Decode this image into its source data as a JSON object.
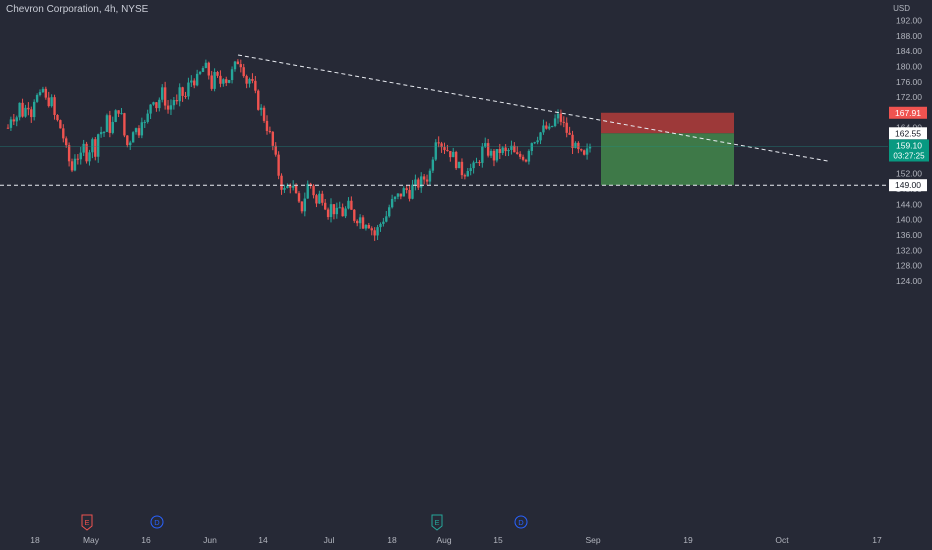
{
  "header": {
    "symbol_title": "Chevron Corporation, 4h, NYSE",
    "currency": "USD"
  },
  "price_axis": {
    "labels": [
      "192.00",
      "188.00",
      "184.00",
      "180.00",
      "176.00",
      "172.00",
      "168.00",
      "164.00",
      "160.00",
      "156.00",
      "152.00",
      "148.00",
      "144.00",
      "140.00",
      "136.00",
      "132.00",
      "128.00",
      "124.00"
    ]
  },
  "time_axis": {
    "labels": [
      "18",
      "May",
      "16",
      "Jun",
      "14",
      "Jul",
      "18",
      "Aug",
      "15",
      "Sep",
      "19",
      "Oct",
      "17"
    ]
  },
  "events": [
    {
      "label": "E",
      "kind": "earnings",
      "color": "#ef5350"
    },
    {
      "label": "D",
      "kind": "dividend",
      "color": "#2962ff"
    },
    {
      "label": "E",
      "kind": "earnings",
      "color": "#26a69a"
    },
    {
      "label": "D",
      "kind": "dividend",
      "color": "#2962ff"
    }
  ],
  "badges": {
    "stop": {
      "text": "167.91",
      "color": "#ef5350"
    },
    "entry": {
      "text": "162.55",
      "color": "#ffffff"
    },
    "last": {
      "price": "159.10",
      "countdown": "03:27:25",
      "color": "#089981"
    },
    "target": {
      "text": "149.00",
      "color": "#ffffff"
    }
  },
  "colors": {
    "background": "#262936",
    "up": "#26a69a",
    "down": "#ef5350",
    "risk_zone": "#a33a3a",
    "reward_zone": "#3f7d4a",
    "axis_text": "#b2b5be"
  },
  "chart_data": {
    "type": "candlestick",
    "title": "Chevron Corporation, 4h, NYSE",
    "x_axis": {
      "ticks": [
        "18",
        "May",
        "16",
        "Jun",
        "14",
        "Jul",
        "18",
        "Aug",
        "15",
        "Sep",
        "19",
        "Oct",
        "17"
      ]
    },
    "y_axis": {
      "unit": "USD",
      "range": [
        121,
        194
      ],
      "ticks": [
        192,
        188,
        184,
        180,
        176,
        172,
        168,
        164,
        160,
        156,
        152,
        148,
        144,
        140,
        136,
        132,
        128,
        124
      ]
    },
    "grid": false,
    "series": [
      {
        "type": "close_path",
        "values": [
          [
            0,
            164
          ],
          [
            4,
            168
          ],
          [
            8,
            166
          ],
          [
            12,
            170
          ],
          [
            16,
            167
          ],
          [
            20,
            171
          ],
          [
            24,
            168
          ],
          [
            28,
            173
          ],
          [
            32,
            171
          ],
          [
            36,
            174
          ],
          [
            40,
            170
          ],
          [
            44,
            172
          ],
          [
            48,
            167
          ],
          [
            52,
            165
          ],
          [
            56,
            163
          ],
          [
            58,
            160
          ],
          [
            62,
            156
          ],
          [
            66,
            153
          ],
          [
            70,
            158
          ],
          [
            74,
            155
          ],
          [
            78,
            159
          ],
          [
            82,
            156
          ],
          [
            86,
            161
          ],
          [
            90,
            158
          ],
          [
            94,
            164
          ],
          [
            98,
            162
          ],
          [
            102,
            166
          ],
          [
            106,
            163
          ],
          [
            110,
            167
          ],
          [
            114,
            169
          ],
          [
            118,
            166
          ],
          [
            120,
            162
          ],
          [
            122,
            159
          ],
          [
            126,
            161
          ],
          [
            130,
            165
          ],
          [
            134,
            162
          ],
          [
            138,
            167
          ],
          [
            142,
            164
          ],
          [
            146,
            170
          ],
          [
            150,
            172
          ],
          [
            154,
            169
          ],
          [
            158,
            174
          ],
          [
            162,
            171
          ],
          [
            166,
            168
          ],
          [
            170,
            172
          ],
          [
            174,
            170
          ],
          [
            178,
            174
          ],
          [
            182,
            171
          ],
          [
            186,
            175
          ],
          [
            190,
            177
          ],
          [
            194,
            176
          ],
          [
            198,
            178
          ],
          [
            202,
            180
          ],
          [
            206,
            179
          ],
          [
            210,
            175
          ],
          [
            214,
            178
          ],
          [
            218,
            175
          ],
          [
            222,
            178
          ],
          [
            226,
            176
          ],
          [
            230,
            178
          ],
          [
            234,
            180
          ],
          [
            238,
            182
          ],
          [
            242,
            180
          ],
          [
            246,
            176
          ],
          [
            250,
            177
          ],
          [
            254,
            173
          ],
          [
            258,
            170
          ],
          [
            262,
            168
          ],
          [
            266,
            165
          ],
          [
            270,
            162
          ],
          [
            274,
            158
          ],
          [
            278,
            153
          ],
          [
            282,
            149
          ],
          [
            286,
            147
          ],
          [
            290,
            150
          ],
          [
            294,
            148
          ],
          [
            298,
            145
          ],
          [
            302,
            142
          ],
          [
            306,
            146
          ],
          [
            310,
            150
          ],
          [
            314,
            148
          ],
          [
            318,
            144
          ],
          [
            322,
            147
          ],
          [
            326,
            145
          ],
          [
            330,
            142
          ],
          [
            334,
            144
          ],
          [
            338,
            141
          ],
          [
            342,
            143
          ],
          [
            346,
            141
          ],
          [
            350,
            144
          ],
          [
            354,
            142
          ],
          [
            358,
            140
          ],
          [
            362,
            141
          ],
          [
            366,
            139
          ],
          [
            370,
            140
          ],
          [
            374,
            138
          ],
          [
            378,
            136
          ],
          [
            382,
            138
          ],
          [
            386,
            140
          ],
          [
            390,
            141
          ],
          [
            394,
            144
          ],
          [
            398,
            145
          ],
          [
            402,
            146
          ],
          [
            406,
            147
          ],
          [
            410,
            148
          ],
          [
            414,
            147
          ],
          [
            418,
            149
          ],
          [
            422,
            149
          ],
          [
            426,
            150
          ],
          [
            430,
            151
          ],
          [
            434,
            151
          ],
          [
            438,
            157
          ],
          [
            442,
            163
          ],
          [
            446,
            160
          ],
          [
            450,
            159
          ],
          [
            454,
            158
          ],
          [
            458,
            157
          ],
          [
            462,
            155
          ],
          [
            466,
            153
          ],
          [
            470,
            152
          ],
          [
            474,
            154
          ],
          [
            478,
            153
          ],
          [
            482,
            154
          ],
          [
            486,
            156
          ],
          [
            490,
            159
          ],
          [
            494,
            158
          ],
          [
            498,
            157
          ],
          [
            502,
            156
          ],
          [
            506,
            158
          ],
          [
            510,
            158
          ],
          [
            514,
            157
          ],
          [
            518,
            159
          ],
          [
            522,
            157
          ],
          [
            526,
            156
          ],
          [
            530,
            157
          ],
          [
            534,
            156
          ],
          [
            538,
            160
          ],
          [
            542,
            161
          ],
          [
            546,
            162
          ],
          [
            550,
            163
          ],
          [
            554,
            164
          ],
          [
            558,
            163
          ],
          [
            562,
            165
          ],
          [
            566,
            167
          ],
          [
            570,
            166
          ],
          [
            574,
            164
          ],
          [
            578,
            162
          ],
          [
            582,
            160
          ],
          [
            586,
            158
          ],
          [
            590,
            157
          ],
          [
            594,
            156
          ],
          [
            598,
            158
          ],
          [
            600,
            159.1
          ]
        ]
      }
    ],
    "annotations": [
      {
        "type": "trend_line",
        "style": "dashed",
        "from_price": 183,
        "to_price": 155.2
      },
      {
        "type": "horizontal_line",
        "style": "dashed",
        "price": 149.0
      },
      {
        "type": "short_position",
        "stop": 167.91,
        "entry": 162.55,
        "target": 149.0
      }
    ],
    "last_price": 159.1,
    "countdown": "03:27:25"
  }
}
